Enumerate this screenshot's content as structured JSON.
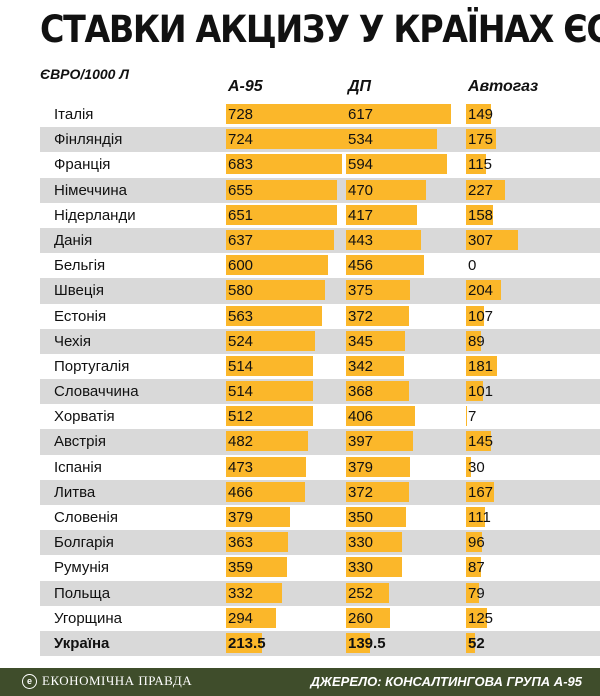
{
  "title": "СТАВКИ АКЦИЗУ У КРАЇНАХ ЄС",
  "unit": "ЄВРО/1000 Л",
  "footer": {
    "brand": "ЕКОНОМІЧНА ПРАВДА",
    "source": "ДЖЕРЕЛО: КОНСАЛТИНГОВА ГРУПА А-95"
  },
  "chart_data": {
    "type": "bar",
    "title": "СТАВКИ АКЦИЗУ У КРАЇНАХ ЄС",
    "ylabel": "ЄВРО/1000 Л",
    "categories": [
      "Італія",
      "Фінляндія",
      "Франція",
      "Німеччина",
      "Нідерланди",
      "Данія",
      "Бельгія",
      "Швеція",
      "Естонія",
      "Чехія",
      "Португалія",
      "Словаччина",
      "Хорватія",
      "Австрія",
      "Іспанія",
      "Литва",
      "Словенія",
      "Болгарія",
      "Румунія",
      "Польща",
      "Угорщина",
      "Україна"
    ],
    "series": [
      {
        "name": "А-95",
        "values": [
          728,
          724,
          683,
          655,
          651,
          637,
          600,
          580,
          563,
          524,
          514,
          514,
          512,
          482,
          473,
          466,
          379,
          363,
          359,
          332,
          294,
          213.5
        ],
        "labels": [
          "728",
          "724",
          "683",
          "655",
          "651",
          "637",
          "600",
          "580",
          "563",
          "524",
          "514",
          "514",
          "512",
          "482",
          "473",
          "466",
          "379",
          "363",
          "359",
          "332",
          "294",
          "213.5"
        ]
      },
      {
        "name": "ДП",
        "values": [
          617,
          534,
          594,
          470,
          417,
          443,
          456,
          375,
          372,
          345,
          342,
          368,
          406,
          397,
          379,
          372,
          350,
          330,
          330,
          252,
          260,
          139.5
        ],
        "labels": [
          "617",
          "534",
          "594",
          "470",
          "417",
          "443",
          "456",
          "375",
          "372",
          "345",
          "342",
          "368",
          "406",
          "397",
          "379",
          "372",
          "350",
          "330",
          "330",
          "252",
          "260",
          "139.5"
        ]
      },
      {
        "name": "Автогаз",
        "values": [
          149,
          175,
          115,
          227,
          158,
          307,
          0,
          204,
          107,
          89,
          181,
          101,
          7,
          145,
          30,
          167,
          111,
          96,
          87,
          79,
          125,
          52
        ],
        "labels": [
          "149",
          "175",
          "115",
          "227",
          "158",
          "307",
          "0",
          "204",
          "107",
          "89",
          "181",
          "101",
          "7",
          "145",
          "30",
          "167",
          "111",
          "96",
          "87",
          "79",
          "125",
          "52"
        ]
      }
    ]
  }
}
